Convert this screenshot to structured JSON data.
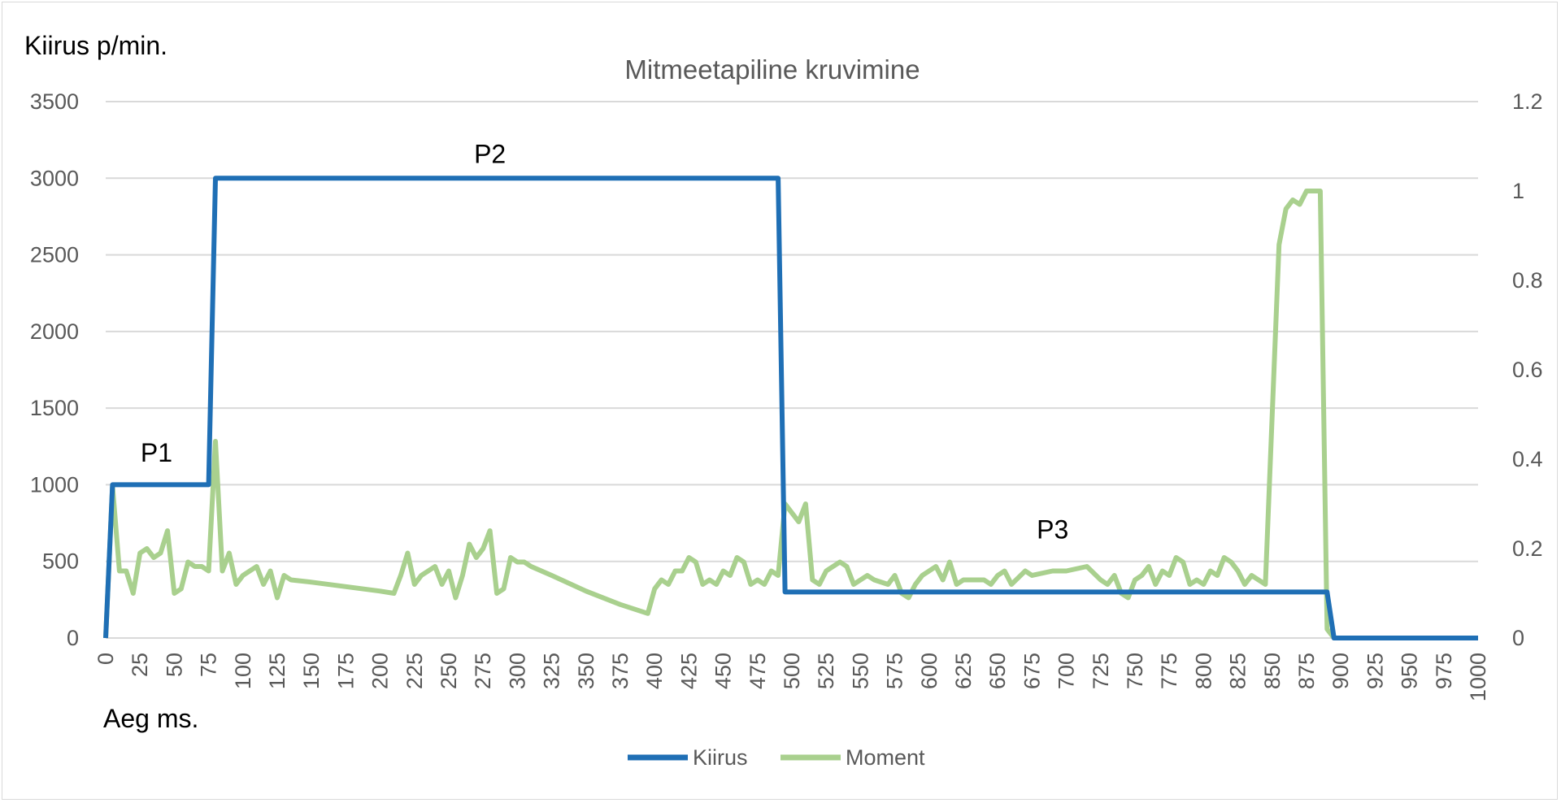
{
  "chart_data": {
    "type": "line",
    "title": "Mitmeetapiline kruvimine",
    "ylabel": "Kiirus p/min.",
    "xlabel": "Aeg ms.",
    "xlim": [
      0,
      1000
    ],
    "ylim": [
      0,
      3500
    ],
    "y2lim": [
      0,
      1.2
    ],
    "x_ticks": [
      "0",
      "25",
      "50",
      "75",
      "100",
      "125",
      "150",
      "175",
      "200",
      "225",
      "250",
      "275",
      "300",
      "325",
      "350",
      "375",
      "400",
      "425",
      "450",
      "475",
      "500",
      "525",
      "550",
      "575",
      "600",
      "625",
      "650",
      "675",
      "700",
      "725",
      "750",
      "775",
      "800",
      "825",
      "850",
      "875",
      "900",
      "925",
      "950",
      "975",
      "1000"
    ],
    "y_ticks": [
      "0",
      "500",
      "1000",
      "1500",
      "2000",
      "2500",
      "3000",
      "3500"
    ],
    "y2_ticks": [
      "0",
      "0.2",
      "0.4",
      "0.6",
      "0.8",
      "1",
      "1.2"
    ],
    "grid": true,
    "legend_position": "bottom",
    "annotations": [
      {
        "text": "P1",
        "x": 37,
        "y": 1150
      },
      {
        "text": "P2",
        "x": 280,
        "y": 3100
      },
      {
        "text": "P3",
        "x": 690,
        "y": 650
      }
    ],
    "series": [
      {
        "name": "Kiirus",
        "axis": "left",
        "color": "#1f6fb5",
        "points": [
          [
            0,
            0
          ],
          [
            5,
            1000
          ],
          [
            75,
            1000
          ],
          [
            80,
            3000
          ],
          [
            490,
            3000
          ],
          [
            495,
            300
          ],
          [
            890,
            300
          ],
          [
            895,
            0
          ],
          [
            1000,
            0
          ]
        ]
      },
      {
        "name": "Moment",
        "axis": "right",
        "color": "#a9d08e",
        "points": [
          [
            0,
            0
          ],
          [
            5,
            0.34
          ],
          [
            10,
            0.15
          ],
          [
            15,
            0.15
          ],
          [
            20,
            0.1
          ],
          [
            25,
            0.19
          ],
          [
            30,
            0.2
          ],
          [
            35,
            0.18
          ],
          [
            40,
            0.19
          ],
          [
            45,
            0.24
          ],
          [
            50,
            0.1
          ],
          [
            55,
            0.11
          ],
          [
            60,
            0.17
          ],
          [
            65,
            0.16
          ],
          [
            70,
            0.16
          ],
          [
            75,
            0.15
          ],
          [
            80,
            0.44
          ],
          [
            85,
            0.15
          ],
          [
            90,
            0.19
          ],
          [
            95,
            0.12
          ],
          [
            100,
            0.14
          ],
          [
            105,
            0.15
          ],
          [
            110,
            0.16
          ],
          [
            115,
            0.12
          ],
          [
            120,
            0.15
          ],
          [
            125,
            0.09
          ],
          [
            130,
            0.14
          ],
          [
            135,
            0.13
          ],
          [
            150,
            0.125
          ],
          [
            175,
            0.115
          ],
          [
            200,
            0.105
          ],
          [
            210,
            0.1
          ],
          [
            215,
            0.14
          ],
          [
            220,
            0.19
          ],
          [
            225,
            0.12
          ],
          [
            230,
            0.14
          ],
          [
            235,
            0.15
          ],
          [
            240,
            0.16
          ],
          [
            245,
            0.12
          ],
          [
            250,
            0.15
          ],
          [
            255,
            0.09
          ],
          [
            260,
            0.14
          ],
          [
            265,
            0.21
          ],
          [
            270,
            0.18
          ],
          [
            275,
            0.2
          ],
          [
            280,
            0.24
          ],
          [
            285,
            0.1
          ],
          [
            290,
            0.11
          ],
          [
            295,
            0.18
          ],
          [
            300,
            0.17
          ],
          [
            305,
            0.17
          ],
          [
            310,
            0.16
          ],
          [
            325,
            0.14
          ],
          [
            350,
            0.105
          ],
          [
            375,
            0.075
          ],
          [
            395,
            0.055
          ],
          [
            400,
            0.11
          ],
          [
            405,
            0.13
          ],
          [
            410,
            0.12
          ],
          [
            415,
            0.15
          ],
          [
            420,
            0.15
          ],
          [
            425,
            0.18
          ],
          [
            430,
            0.17
          ],
          [
            435,
            0.12
          ],
          [
            440,
            0.13
          ],
          [
            445,
            0.12
          ],
          [
            450,
            0.15
          ],
          [
            455,
            0.14
          ],
          [
            460,
            0.18
          ],
          [
            465,
            0.17
          ],
          [
            470,
            0.12
          ],
          [
            475,
            0.13
          ],
          [
            480,
            0.12
          ],
          [
            485,
            0.15
          ],
          [
            490,
            0.14
          ],
          [
            495,
            0.3
          ],
          [
            500,
            0.28
          ],
          [
            505,
            0.26
          ],
          [
            510,
            0.3
          ],
          [
            515,
            0.13
          ],
          [
            520,
            0.12
          ],
          [
            525,
            0.15
          ],
          [
            530,
            0.16
          ],
          [
            535,
            0.17
          ],
          [
            540,
            0.16
          ],
          [
            545,
            0.12
          ],
          [
            550,
            0.13
          ],
          [
            555,
            0.14
          ],
          [
            560,
            0.13
          ],
          [
            570,
            0.12
          ],
          [
            575,
            0.14
          ],
          [
            580,
            0.1
          ],
          [
            585,
            0.09
          ],
          [
            590,
            0.12
          ],
          [
            595,
            0.14
          ],
          [
            600,
            0.15
          ],
          [
            605,
            0.16
          ],
          [
            610,
            0.13
          ],
          [
            615,
            0.17
          ],
          [
            620,
            0.12
          ],
          [
            625,
            0.13
          ],
          [
            640,
            0.13
          ],
          [
            645,
            0.12
          ],
          [
            650,
            0.14
          ],
          [
            655,
            0.15
          ],
          [
            660,
            0.12
          ],
          [
            670,
            0.15
          ],
          [
            675,
            0.14
          ],
          [
            690,
            0.15
          ],
          [
            700,
            0.15
          ],
          [
            715,
            0.16
          ],
          [
            725,
            0.13
          ],
          [
            730,
            0.12
          ],
          [
            735,
            0.14
          ],
          [
            740,
            0.1
          ],
          [
            745,
            0.09
          ],
          [
            750,
            0.13
          ],
          [
            755,
            0.14
          ],
          [
            760,
            0.16
          ],
          [
            765,
            0.12
          ],
          [
            770,
            0.15
          ],
          [
            775,
            0.14
          ],
          [
            780,
            0.18
          ],
          [
            785,
            0.17
          ],
          [
            790,
            0.12
          ],
          [
            795,
            0.13
          ],
          [
            800,
            0.12
          ],
          [
            805,
            0.15
          ],
          [
            810,
            0.14
          ],
          [
            815,
            0.18
          ],
          [
            820,
            0.17
          ],
          [
            825,
            0.15
          ],
          [
            830,
            0.12
          ],
          [
            835,
            0.14
          ],
          [
            840,
            0.13
          ],
          [
            845,
            0.12
          ],
          [
            850,
            0.5
          ],
          [
            855,
            0.88
          ],
          [
            860,
            0.96
          ],
          [
            865,
            0.98
          ],
          [
            870,
            0.97
          ],
          [
            875,
            1.0
          ],
          [
            885,
            1.0
          ],
          [
            890,
            0.02
          ],
          [
            895,
            0
          ],
          [
            1000,
            0
          ]
        ]
      }
    ]
  },
  "colors": {
    "grid": "#d9d9d9",
    "kiirus": "#1f6fb5",
    "moment": "#a9d08e"
  }
}
